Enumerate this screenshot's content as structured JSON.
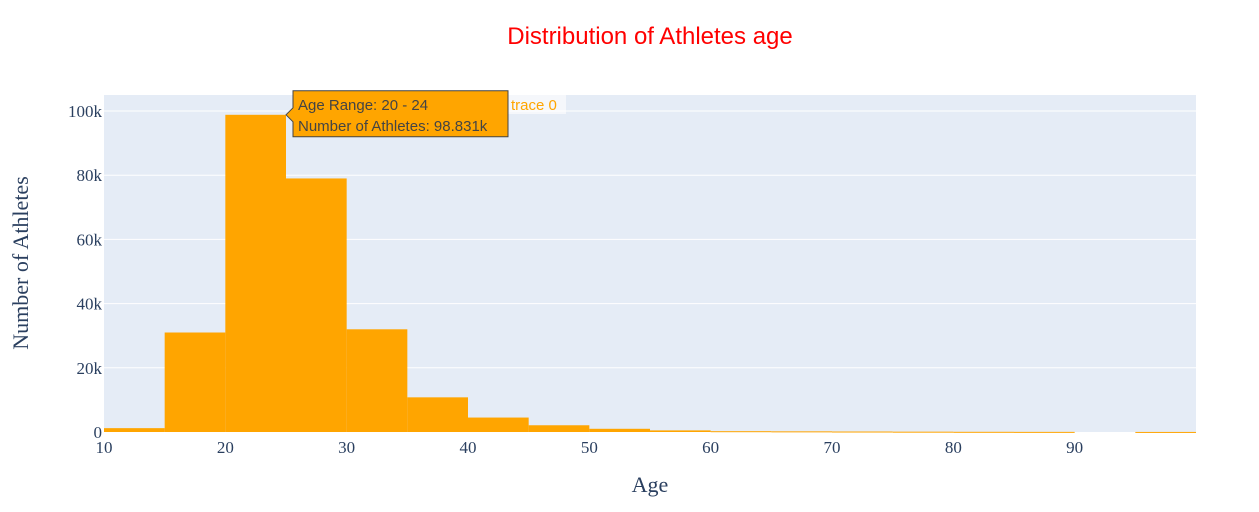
{
  "chart_data": {
    "type": "bar",
    "title": "Distribution of Athletes age",
    "xlabel": "Age",
    "ylabel": "Number of Athletes",
    "bins": [
      {
        "start": 10,
        "end": 15,
        "value": 1200
      },
      {
        "start": 15,
        "end": 20,
        "value": 31000
      },
      {
        "start": 20,
        "end": 25,
        "value": 98831
      },
      {
        "start": 25,
        "end": 30,
        "value": 79000
      },
      {
        "start": 30,
        "end": 35,
        "value": 32000
      },
      {
        "start": 35,
        "end": 40,
        "value": 10800
      },
      {
        "start": 40,
        "end": 45,
        "value": 4500
      },
      {
        "start": 45,
        "end": 50,
        "value": 2100
      },
      {
        "start": 50,
        "end": 55,
        "value": 1000
      },
      {
        "start": 55,
        "end": 60,
        "value": 500
      },
      {
        "start": 60,
        "end": 65,
        "value": 250
      },
      {
        "start": 65,
        "end": 70,
        "value": 200
      },
      {
        "start": 70,
        "end": 75,
        "value": 150
      },
      {
        "start": 75,
        "end": 80,
        "value": 100
      },
      {
        "start": 80,
        "end": 85,
        "value": 60
      },
      {
        "start": 85,
        "end": 90,
        "value": 40
      },
      {
        "start": 90,
        "end": 95,
        "value": 0
      },
      {
        "start": 95,
        "end": 100,
        "value": 20
      }
    ],
    "xlim": [
      10,
      100
    ],
    "ylim": [
      0,
      105000
    ],
    "x_ticks": [
      {
        "value": 10,
        "label": "10"
      },
      {
        "value": 20,
        "label": "20"
      },
      {
        "value": 30,
        "label": "30"
      },
      {
        "value": 40,
        "label": "40"
      },
      {
        "value": 50,
        "label": "50"
      },
      {
        "value": 60,
        "label": "60"
      },
      {
        "value": 70,
        "label": "70"
      },
      {
        "value": 80,
        "label": "80"
      },
      {
        "value": 90,
        "label": "90"
      }
    ],
    "y_ticks": [
      {
        "value": 0,
        "label": "0"
      },
      {
        "value": 20000,
        "label": "20k"
      },
      {
        "value": 40000,
        "label": "40k"
      },
      {
        "value": 60000,
        "label": "60k"
      },
      {
        "value": 80000,
        "label": "80k"
      },
      {
        "value": 100000,
        "label": "100k"
      }
    ],
    "grid": true,
    "colors": {
      "bar": "#FFA500",
      "title": "#ff0000",
      "plot_bg": "#E5ECF6",
      "grid": "#ffffff",
      "axis_text": "#2a3f5f"
    },
    "hover": {
      "bin_index": 2,
      "line1": "Age Range: 20 - 24",
      "line2": "Number of Athletes: 98.831k",
      "trace_name": "trace 0"
    }
  }
}
